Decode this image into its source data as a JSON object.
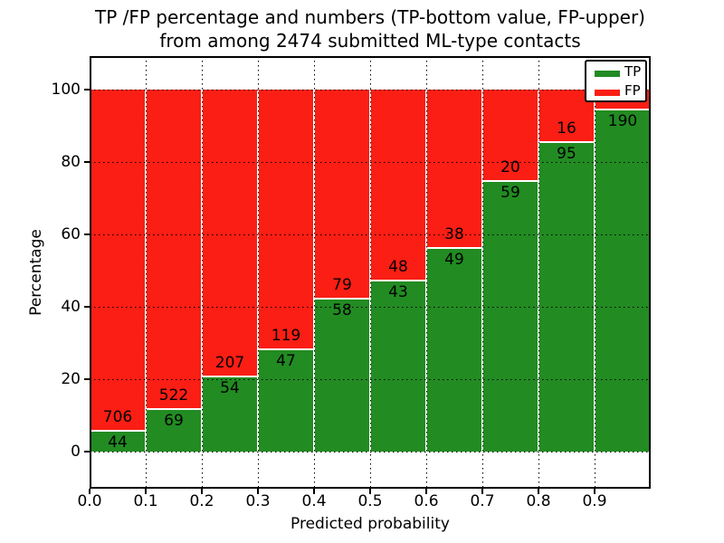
{
  "chart_data": {
    "type": "bar",
    "variant": "stacked-percentage",
    "title_line1": "TP /FP percentage and numbers (TP-bottom value, FP-upper)",
    "title_line2": "from among 2474 submitted ML-type contacts",
    "xlabel": "Predicted probability",
    "ylabel": "Percentage",
    "x_tick_labels": [
      "0.0",
      "0.1",
      "0.2",
      "0.3",
      "0.4",
      "0.5",
      "0.6",
      "0.7",
      "0.8",
      "0.9"
    ],
    "y_ticks": [
      0,
      20,
      40,
      60,
      80,
      100
    ],
    "ylim": [
      -10.5,
      109.5
    ],
    "xlim": [
      0,
      1
    ],
    "bin_width": 0.1,
    "total_submitted": 2474,
    "grid": "dotted",
    "legend_position": "upper-right",
    "legend": [
      {
        "label": "TP",
        "color": "#228B22"
      },
      {
        "label": "FP",
        "color": "#FA1E14"
      }
    ],
    "series": [
      {
        "name": "TP",
        "values": [
          44,
          69,
          54,
          47,
          58,
          43,
          49,
          59,
          95,
          190
        ]
      },
      {
        "name": "FP",
        "values": [
          706,
          522,
          207,
          119,
          79,
          48,
          38,
          20,
          16,
          null
        ]
      }
    ],
    "tp_percent": [
      5.87,
      11.68,
      20.69,
      28.31,
      42.34,
      47.25,
      56.32,
      74.68,
      85.59,
      94.53
    ],
    "colors": {
      "tp": "#228B22",
      "fp": "#FA1E14",
      "grid": "#000000",
      "background": "#FFFFFF"
    }
  }
}
